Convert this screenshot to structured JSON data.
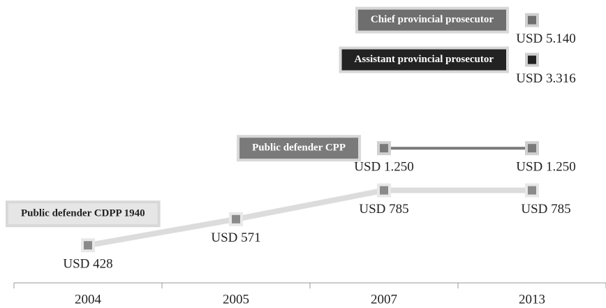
{
  "chart_data": {
    "type": "line",
    "categories": [
      "2004",
      "2005",
      "2007",
      "2013"
    ],
    "log": true,
    "ylim": [
      400,
      5500
    ],
    "series": [
      {
        "name": "Public defender CDPP 1940",
        "color": "#dcdcdc",
        "values": [
          428,
          571,
          785,
          785
        ],
        "value_labels": [
          "USD 428",
          "USD 571",
          "USD 785",
          "USD 785"
        ]
      },
      {
        "name": "Public defender CPP",
        "color": "#7a7a7a",
        "values": [
          null,
          null,
          1250,
          1250
        ],
        "value_labels": [
          null,
          null,
          "USD 1.250",
          "USD 1.250"
        ]
      },
      {
        "name": "Assistant provincial prosecutor",
        "color": "#222222",
        "values": [
          null,
          null,
          null,
          3316
        ],
        "value_labels": [
          null,
          null,
          null,
          "USD 3.316"
        ]
      },
      {
        "name": "Chief provincial prosecutor",
        "color": "#6e6e6e",
        "values": [
          null,
          null,
          null,
          5140
        ],
        "value_labels": [
          null,
          null,
          null,
          "USD 5.140"
        ]
      }
    ]
  }
}
